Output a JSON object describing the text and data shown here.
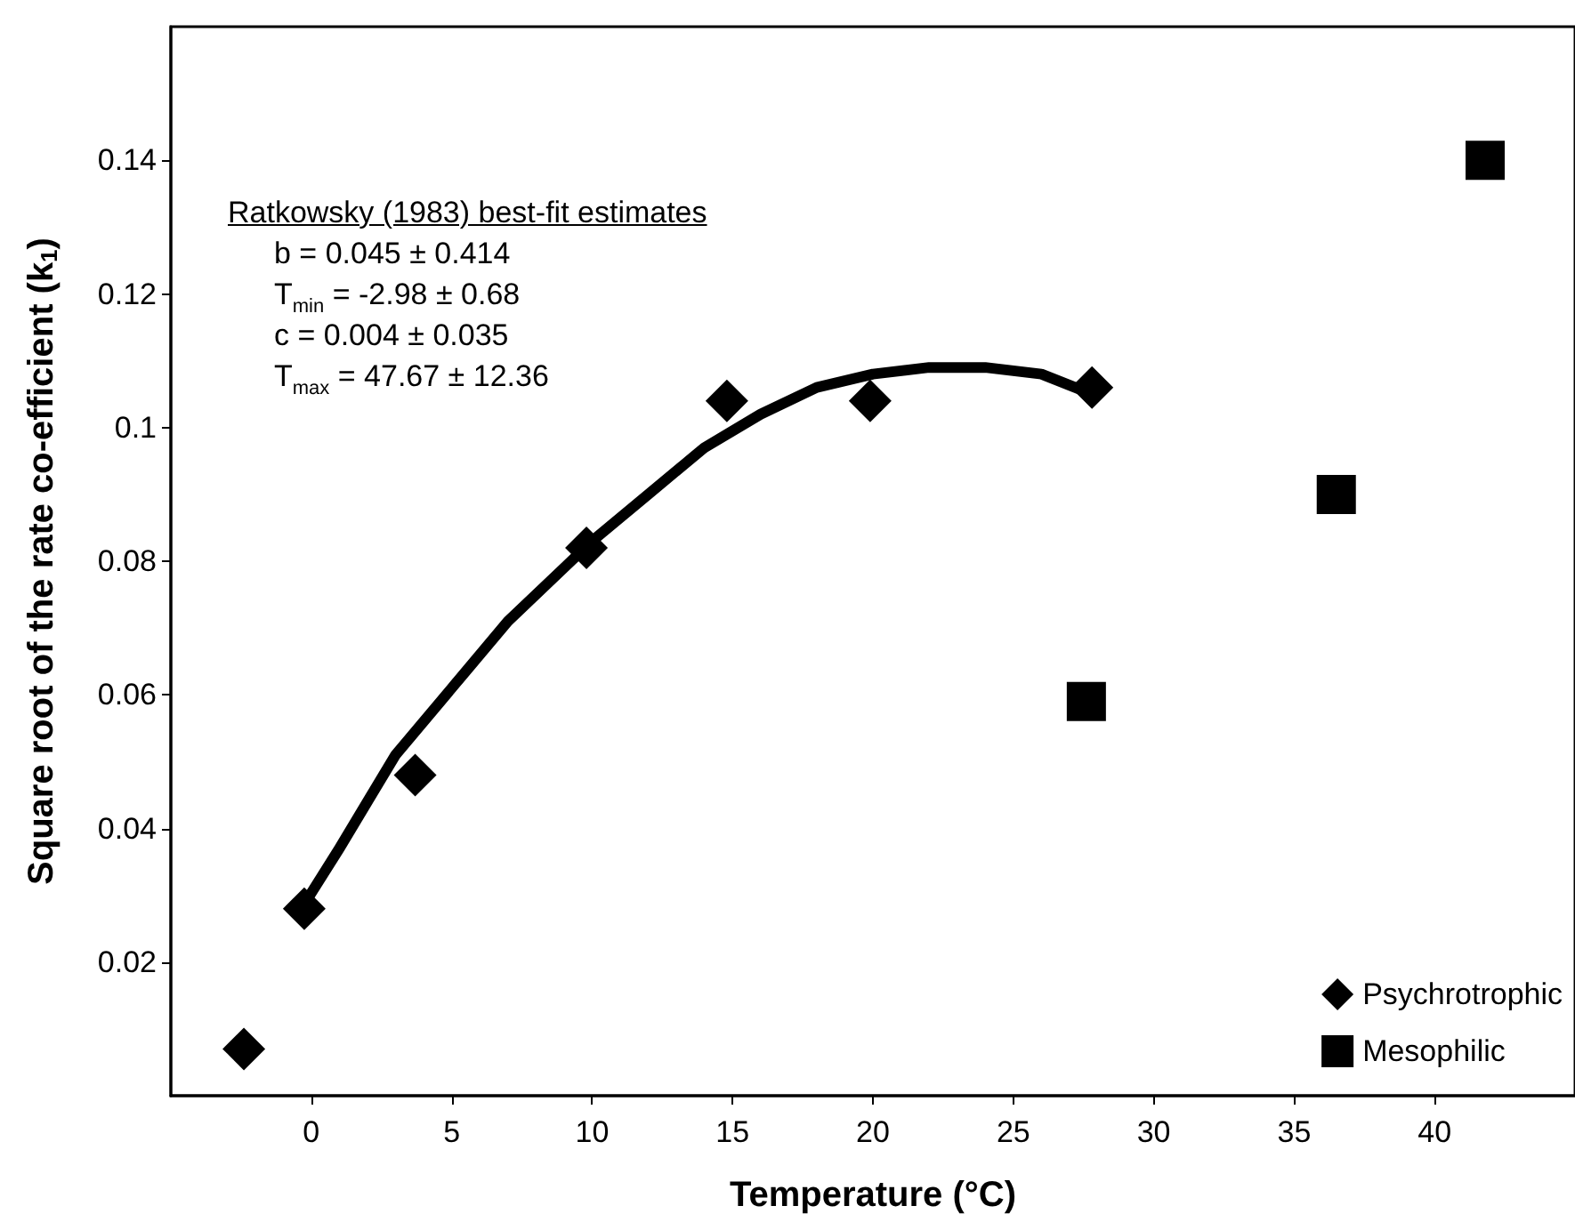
{
  "chart_data": {
    "type": "scatter",
    "xlabel": "Temperature (°C)",
    "ylabel": "Square root of the rate co-efficient (k$_{1}$)",
    "xlim": [
      -5,
      45
    ],
    "xticks": [
      0,
      5,
      10,
      15,
      20,
      25,
      30,
      35,
      40
    ],
    "ylim": [
      0,
      0.16
    ],
    "yticks": [
      0.02,
      0.04,
      0.06,
      0.08,
      0.1,
      0.12,
      0.14
    ],
    "grid": false,
    "legend": "bottom right",
    "annotations": [
      "Ratkowsky (1983) best-fit estimates",
      "b = 0.045 ± 0.414",
      "T$_{min}$ = -2.98 ± 0.68",
      "c = 0.004 ± 0.035",
      "T$_{max}$ = 47.67 ± 12.36"
    ],
    "series": [
      {
        "name": "Psychrotrophic",
        "color": "#000000",
        "marker": "diamond",
        "x": [
          -2.4,
          -0.25,
          3.7,
          9.8,
          14.8,
          19.9,
          27.8
        ],
        "values": [
          0.007,
          0.028,
          0.048,
          0.082,
          0.104,
          0.104,
          0.106
        ]
      },
      {
        "name": "Mesophilic",
        "color": "#000000",
        "marker": "square",
        "x": [
          27.6,
          36.5,
          41.8
        ],
        "values": [
          0.059,
          0.09,
          0.14
        ]
      },
      {
        "type": "line",
        "color": "#000000",
        "marker": "none",
        "line_style": "solid",
        "x": [
          -0.2,
          1,
          2,
          3,
          5,
          7,
          9,
          10,
          12,
          14,
          16,
          18,
          20,
          22,
          24,
          26,
          27.8
        ],
        "values": [
          0.029,
          0.037,
          0.044,
          0.051,
          0.061,
          0.071,
          0.079,
          0.083,
          0.09,
          0.097,
          0.102,
          0.106,
          0.108,
          0.109,
          0.109,
          0.108,
          0.105
        ]
      }
    ]
  }
}
